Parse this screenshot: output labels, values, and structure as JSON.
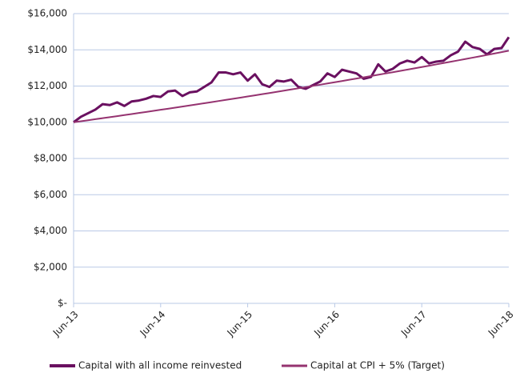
{
  "chart_data": {
    "type": "line",
    "categories": [
      "Jun-13",
      null,
      null,
      null,
      null,
      null,
      null,
      null,
      null,
      null,
      null,
      null,
      "Jun-14",
      null,
      null,
      null,
      null,
      null,
      null,
      null,
      null,
      null,
      null,
      null,
      "Jun-15",
      null,
      null,
      null,
      null,
      null,
      null,
      null,
      null,
      null,
      null,
      null,
      "Jun-16",
      null,
      null,
      null,
      null,
      null,
      null,
      null,
      null,
      null,
      null,
      null,
      "Jun-17",
      null,
      null,
      null,
      null,
      null,
      null,
      null,
      null,
      null,
      null,
      null,
      "Jun-18"
    ],
    "series": [
      {
        "name": "Capital with all income reinvested",
        "color": "#6a1060",
        "values": [
          10000,
          10300,
          10500,
          10700,
          11000,
          10950,
          11100,
          10900,
          11150,
          11200,
          11300,
          11450,
          11400,
          11700,
          11750,
          11450,
          11650,
          11700,
          11950,
          12200,
          12750,
          12750,
          12650,
          12750,
          12300,
          12650,
          12100,
          11950,
          12300,
          12250,
          12350,
          11950,
          11850,
          12050,
          12250,
          12700,
          12500,
          12900,
          12800,
          12700,
          12400,
          12500,
          13200,
          12800,
          12950,
          13250,
          13400,
          13300,
          13600,
          13250,
          13350,
          13400,
          13700,
          13900,
          14450,
          14150,
          14050,
          13750,
          14050,
          14100,
          14700
        ]
      },
      {
        "name": "Capital at CPI + 5% (Target)",
        "color": "#953370",
        "values": [
          10000,
          10056,
          10112,
          10169,
          10225,
          10282,
          10339,
          10397,
          10454,
          10512,
          10571,
          10630,
          10689,
          10748,
          10808,
          10868,
          10928,
          10989,
          11050,
          11112,
          11174,
          11236,
          11298,
          11361,
          11424,
          11487,
          11551,
          11615,
          11680,
          11745,
          11810,
          11876,
          11942,
          12008,
          12075,
          12142,
          12210,
          12278,
          12346,
          12415,
          12484,
          12553,
          12623,
          12693,
          12764,
          12835,
          12906,
          12978,
          13050,
          13123,
          13196,
          13269,
          13343,
          13417,
          13492,
          13567,
          13642,
          13718,
          13795,
          13871,
          13949
        ]
      }
    ],
    "ylim": [
      0,
      16000
    ],
    "yticks": [
      {
        "value": 0,
        "label": "$-"
      },
      {
        "value": 2000,
        "label": "$2,000"
      },
      {
        "value": 4000,
        "label": "$4,000"
      },
      {
        "value": 6000,
        "label": "$6,000"
      },
      {
        "value": 8000,
        "label": "$8,000"
      },
      {
        "value": 10000,
        "label": "$10,000"
      },
      {
        "value": 12000,
        "label": "$12,000"
      },
      {
        "value": 14000,
        "label": "$14,000"
      },
      {
        "value": 16000,
        "label": "$16,000"
      }
    ],
    "grid": true,
    "legend": "bottom"
  }
}
